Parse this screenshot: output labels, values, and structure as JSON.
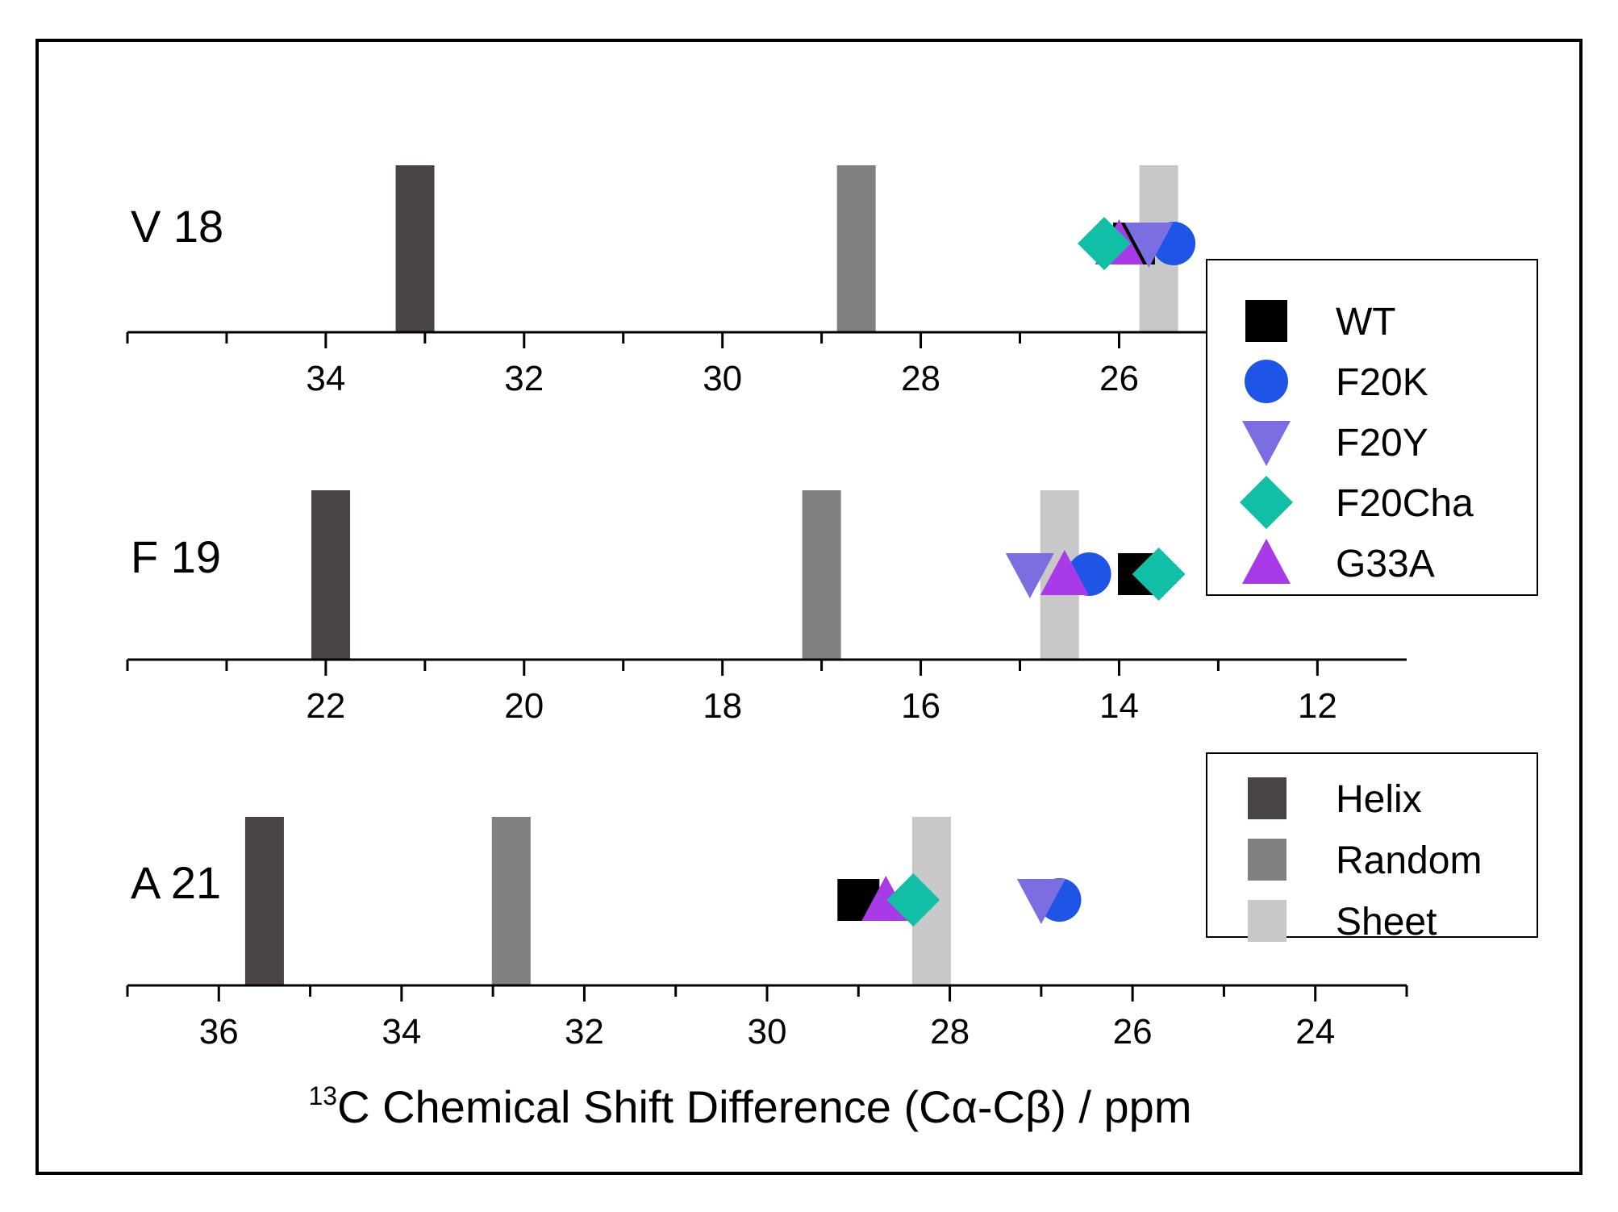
{
  "chart_data": {
    "type": "scatter",
    "xlabel_superscript": "13",
    "xlabel": "C Chemical Shift Difference (Cα-Cβ) / ppm",
    "structure_references": [
      {
        "name": "Helix",
        "color": "#4a4444"
      },
      {
        "name": "Random",
        "color": "#808080"
      },
      {
        "name": "Sheet",
        "color": "#c8c8c8"
      }
    ],
    "series": [
      {
        "name": "WT",
        "marker": "square",
        "color": "#000000"
      },
      {
        "name": "F20K",
        "marker": "circle",
        "color": "#1f55e6"
      },
      {
        "name": "F20Y",
        "marker": "triangle-down",
        "color": "#7b6ee0"
      },
      {
        "name": "F20Cha",
        "marker": "diamond",
        "color": "#10bfa5"
      },
      {
        "name": "G33A",
        "marker": "triangle-up",
        "color": "#a83ae8"
      }
    ],
    "panels": [
      {
        "label": "V 18",
        "xlim": [
          36,
          23.1
        ],
        "ticks": [
          "34",
          "32",
          "30",
          "28",
          "26"
        ],
        "tick_values": [
          34,
          32,
          30,
          28,
          26
        ],
        "references": {
          "Helix": 33.1,
          "Random": 28.65,
          "Sheet": 25.6
        },
        "values": {
          "WT": 25.85,
          "F20K": 25.45,
          "F20Y": 25.7,
          "F20Cha": 26.15,
          "G33A": 26.0
        }
      },
      {
        "label": "F 19",
        "xlim": [
          24,
          11.1
        ],
        "ticks": [
          "22",
          "20",
          "18",
          "16",
          "14",
          "12"
        ],
        "tick_values": [
          22,
          20,
          18,
          16,
          14,
          12
        ],
        "references": {
          "Helix": 21.95,
          "Random": 17.0,
          "Sheet": 14.6
        },
        "values": {
          "WT": 13.8,
          "F20K": 14.3,
          "F20Y": 14.9,
          "F20Cha": 13.6,
          "G33A": 14.55
        }
      },
      {
        "label": "A 21",
        "xlim": [
          37,
          23
        ],
        "ticks": [
          "36",
          "34",
          "32",
          "30",
          "28",
          "26",
          "24"
        ],
        "tick_values": [
          36,
          34,
          32,
          30,
          28,
          26,
          24
        ],
        "references": {
          "Helix": 35.5,
          "Random": 32.8,
          "Sheet": 28.2
        },
        "values": {
          "WT": 29.0,
          "F20K": 26.8,
          "F20Y": 27.0,
          "F20Cha": 28.4,
          "G33A": 28.7
        }
      }
    ]
  }
}
